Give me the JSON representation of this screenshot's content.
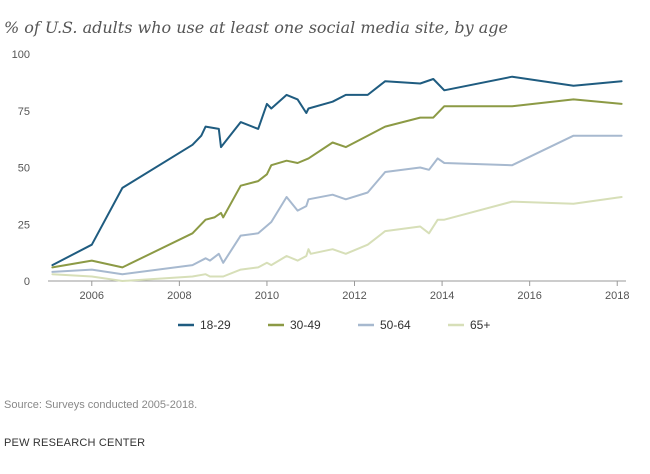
{
  "chart_data": {
    "type": "line",
    "title": "% of U.S. adults who use at least one social media site, by age",
    "xlabel": "",
    "ylabel": "",
    "xlim": [
      2005,
      2018.2
    ],
    "ylim": [
      0,
      100
    ],
    "x_ticks": [
      2006,
      2008,
      2010,
      2012,
      2014,
      2016,
      2018
    ],
    "y_ticks": [
      0,
      25,
      50,
      75,
      100
    ],
    "grid": false,
    "legend_position": "bottom",
    "series": [
      {
        "name": "18-29",
        "color": "#1f5c80",
        "points": [
          [
            2005.1,
            7
          ],
          [
            2006.0,
            16
          ],
          [
            2006.7,
            41
          ],
          [
            2008.3,
            60
          ],
          [
            2008.5,
            64
          ],
          [
            2008.6,
            68
          ],
          [
            2008.9,
            67
          ],
          [
            2008.95,
            59
          ],
          [
            2009.4,
            70
          ],
          [
            2009.8,
            67
          ],
          [
            2010.0,
            78
          ],
          [
            2010.1,
            76
          ],
          [
            2010.45,
            82
          ],
          [
            2010.7,
            80
          ],
          [
            2010.9,
            74
          ],
          [
            2010.95,
            76
          ],
          [
            2011.5,
            79
          ],
          [
            2011.8,
            82
          ],
          [
            2012.3,
            82
          ],
          [
            2012.7,
            88
          ],
          [
            2013.5,
            87
          ],
          [
            2013.8,
            89
          ],
          [
            2014.05,
            84
          ],
          [
            2015.6,
            90
          ],
          [
            2017.0,
            86
          ],
          [
            2018.1,
            88
          ]
        ]
      },
      {
        "name": "30-49",
        "color": "#8c9a45",
        "points": [
          [
            2005.1,
            6
          ],
          [
            2006.0,
            9
          ],
          [
            2006.7,
            6
          ],
          [
            2008.3,
            21
          ],
          [
            2008.6,
            27
          ],
          [
            2008.8,
            28
          ],
          [
            2008.95,
            30
          ],
          [
            2009.0,
            28
          ],
          [
            2009.4,
            42
          ],
          [
            2009.8,
            44
          ],
          [
            2010.0,
            47
          ],
          [
            2010.1,
            51
          ],
          [
            2010.45,
            53
          ],
          [
            2010.7,
            52
          ],
          [
            2010.95,
            54
          ],
          [
            2011.5,
            61
          ],
          [
            2011.8,
            59
          ],
          [
            2012.3,
            64
          ],
          [
            2012.7,
            68
          ],
          [
            2013.5,
            72
          ],
          [
            2013.8,
            72
          ],
          [
            2014.05,
            77
          ],
          [
            2015.6,
            77
          ],
          [
            2017.0,
            80
          ],
          [
            2018.1,
            78
          ]
        ]
      },
      {
        "name": "50-64",
        "color": "#a7b9cf",
        "points": [
          [
            2005.1,
            4
          ],
          [
            2006.0,
            5
          ],
          [
            2006.7,
            3
          ],
          [
            2008.3,
            7
          ],
          [
            2008.6,
            10
          ],
          [
            2008.7,
            9
          ],
          [
            2008.9,
            12
          ],
          [
            2009.0,
            8
          ],
          [
            2009.4,
            20
          ],
          [
            2009.8,
            21
          ],
          [
            2010.1,
            26
          ],
          [
            2010.45,
            37
          ],
          [
            2010.7,
            31
          ],
          [
            2010.9,
            33
          ],
          [
            2010.95,
            36
          ],
          [
            2011.5,
            38
          ],
          [
            2011.8,
            36
          ],
          [
            2012.3,
            39
          ],
          [
            2012.7,
            48
          ],
          [
            2013.5,
            50
          ],
          [
            2013.7,
            49
          ],
          [
            2013.9,
            54
          ],
          [
            2014.05,
            52
          ],
          [
            2015.6,
            51
          ],
          [
            2017.0,
            64
          ],
          [
            2018.1,
            64
          ]
        ]
      },
      {
        "name": "65+",
        "color": "#d7dfb8",
        "points": [
          [
            2005.1,
            3
          ],
          [
            2006.0,
            2
          ],
          [
            2006.7,
            0
          ],
          [
            2008.3,
            2
          ],
          [
            2008.6,
            3
          ],
          [
            2008.7,
            2
          ],
          [
            2009.0,
            2
          ],
          [
            2009.4,
            5
          ],
          [
            2009.8,
            6
          ],
          [
            2010.0,
            8
          ],
          [
            2010.1,
            7
          ],
          [
            2010.45,
            11
          ],
          [
            2010.7,
            9
          ],
          [
            2010.9,
            11
          ],
          [
            2010.95,
            14
          ],
          [
            2011.0,
            12
          ],
          [
            2011.5,
            14
          ],
          [
            2011.8,
            12
          ],
          [
            2012.3,
            16
          ],
          [
            2012.7,
            22
          ],
          [
            2013.5,
            24
          ],
          [
            2013.7,
            21
          ],
          [
            2013.9,
            27
          ],
          [
            2014.05,
            27
          ],
          [
            2015.6,
            35
          ],
          [
            2017.0,
            34
          ],
          [
            2018.1,
            37
          ]
        ]
      }
    ]
  },
  "footer": {
    "source": "Source: Surveys conducted 2005-2018.",
    "org": "PEW RESEARCH CENTER"
  }
}
